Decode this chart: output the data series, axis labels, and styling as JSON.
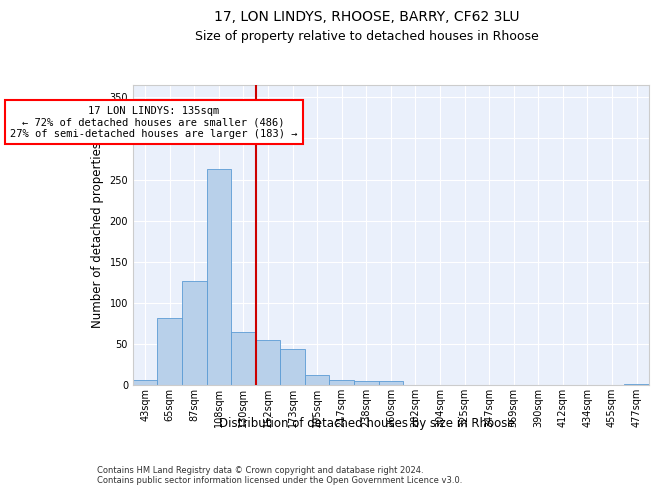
{
  "title_line1": "17, LON LINDYS, RHOOSE, BARRY, CF62 3LU",
  "title_line2": "Size of property relative to detached houses in Rhoose",
  "xlabel": "Distribution of detached houses by size in Rhoose",
  "ylabel": "Number of detached properties",
  "footnote": "Contains HM Land Registry data © Crown copyright and database right 2024.\nContains public sector information licensed under the Open Government Licence v3.0.",
  "bin_labels": [
    "43sqm",
    "65sqm",
    "87sqm",
    "108sqm",
    "130sqm",
    "152sqm",
    "173sqm",
    "195sqm",
    "217sqm",
    "238sqm",
    "260sqm",
    "282sqm",
    "304sqm",
    "325sqm",
    "347sqm",
    "369sqm",
    "390sqm",
    "412sqm",
    "434sqm",
    "455sqm",
    "477sqm"
  ],
  "bar_values": [
    6,
    82,
    127,
    263,
    65,
    55,
    44,
    12,
    6,
    5,
    5,
    0,
    0,
    0,
    0,
    0,
    0,
    0,
    0,
    0,
    1
  ],
  "bar_color": "#b8d0ea",
  "bar_edge_color": "#5b9bd5",
  "red_line_color": "#cc0000",
  "red_line_x": 4.5,
  "annotation_text": "17 LON LINDYS: 135sqm\n← 72% of detached houses are smaller (486)\n27% of semi-detached houses are larger (183) →",
  "annotation_box_color": "white",
  "annotation_box_edge_color": "red",
  "ylim": [
    0,
    365
  ],
  "yticks": [
    0,
    50,
    100,
    150,
    200,
    250,
    300,
    350
  ],
  "xlim": [
    -0.5,
    20.5
  ],
  "background_color": "#eaf0fb",
  "grid_color": "white",
  "title_fontsize": 10,
  "subtitle_fontsize": 9,
  "tick_fontsize": 7,
  "ylabel_fontsize": 8.5,
  "xlabel_fontsize": 8.5,
  "footnote_fontsize": 6,
  "annotation_fontsize": 7.5
}
